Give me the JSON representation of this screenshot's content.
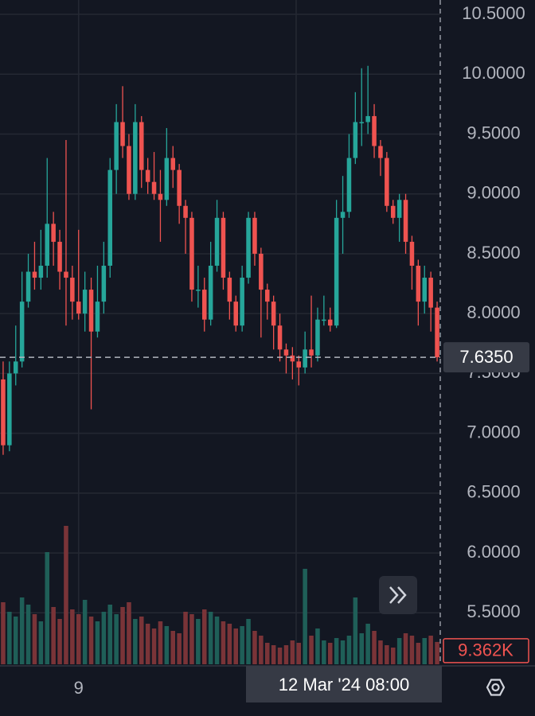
{
  "chart_data": {
    "type": "candlestick",
    "categories": [
      null,
      null,
      null,
      null,
      null,
      null,
      null,
      null,
      null,
      null,
      null,
      null,
      "9",
      null,
      null,
      null,
      null,
      null,
      null,
      null,
      null,
      null,
      null,
      null,
      null,
      null,
      null,
      null,
      null,
      null,
      null,
      null,
      null,
      null,
      null,
      null,
      null,
      null,
      null,
      null,
      null,
      null,
      null,
      null,
      null,
      null,
      null,
      null,
      null,
      null,
      null,
      null,
      null,
      null,
      null,
      null,
      null,
      null,
      null,
      null,
      null,
      null,
      null,
      null,
      null,
      null,
      null,
      null,
      null,
      null
    ],
    "open": [
      7.45,
      6.9,
      7.5,
      7.6,
      8.1,
      8.35,
      8.3,
      8.4,
      8.75,
      8.6,
      8.35,
      8.3,
      8.1,
      8.0,
      8.2,
      7.85,
      8.1,
      8.4,
      9.2,
      9.6,
      9.4,
      9.0,
      9.6,
      9.2,
      9.1,
      9.0,
      8.95,
      9.3,
      9.2,
      8.9,
      8.8,
      8.2,
      8.2,
      7.95,
      8.4,
      8.8,
      8.3,
      8.1,
      7.9,
      8.3,
      8.8,
      8.5,
      8.2,
      8.1,
      7.9,
      7.7,
      7.65,
      7.6,
      7.55,
      7.7,
      7.65,
      7.95,
      7.95,
      7.9,
      8.8,
      8.85,
      9.3,
      9.6,
      9.6,
      9.65,
      9.4,
      9.3,
      8.9,
      8.8,
      8.95,
      8.6,
      8.4,
      8.1,
      8.3,
      8.05
    ],
    "high": [
      7.6,
      7.6,
      7.9,
      8.35,
      8.5,
      8.6,
      8.7,
      9.3,
      8.85,
      8.7,
      9.45,
      8.4,
      8.7,
      8.35,
      8.3,
      8.4,
      8.6,
      9.3,
      9.75,
      9.9,
      9.5,
      9.75,
      9.65,
      9.3,
      9.35,
      9.2,
      9.55,
      9.4,
      9.25,
      8.95,
      8.85,
      8.4,
      8.3,
      8.6,
      8.95,
      8.85,
      8.35,
      8.15,
      8.4,
      8.85,
      8.85,
      8.55,
      8.25,
      8.15,
      8.0,
      7.75,
      7.72,
      7.65,
      7.85,
      8.15,
      8.05,
      8.15,
      8.05,
      8.95,
      9.15,
      9.5,
      9.85,
      10.05,
      10.07,
      9.75,
      9.45,
      9.35,
      8.95,
      9.0,
      9.0,
      8.65,
      8.45,
      8.4,
      8.35,
      8.1
    ],
    "low": [
      6.82,
      6.85,
      7.4,
      7.55,
      8.05,
      8.2,
      8.2,
      8.3,
      8.4,
      8.2,
      7.9,
      7.95,
      7.95,
      7.85,
      7.2,
      7.8,
      8.0,
      8.3,
      9.0,
      9.3,
      8.95,
      8.95,
      9.05,
      9.0,
      8.95,
      8.6,
      8.9,
      9.05,
      8.75,
      8.5,
      8.1,
      8.05,
      7.85,
      7.9,
      8.35,
      8.2,
      7.95,
      7.85,
      7.85,
      8.25,
      8.4,
      7.8,
      7.95,
      7.7,
      7.6,
      7.5,
      7.45,
      7.4,
      7.5,
      7.55,
      7.6,
      7.9,
      7.85,
      7.88,
      8.5,
      8.8,
      9.25,
      9.4,
      9.5,
      9.3,
      9.15,
      8.85,
      8.75,
      8.6,
      8.5,
      8.2,
      7.9,
      8.0,
      7.85,
      7.6
    ],
    "close": [
      6.9,
      7.5,
      7.6,
      8.1,
      8.35,
      8.3,
      8.4,
      8.75,
      8.6,
      8.35,
      8.3,
      8.1,
      8.0,
      8.2,
      7.85,
      8.1,
      8.4,
      9.2,
      9.6,
      9.4,
      9.0,
      9.6,
      9.2,
      9.1,
      9.0,
      8.95,
      9.3,
      9.2,
      8.9,
      8.8,
      8.2,
      8.2,
      7.95,
      8.4,
      8.8,
      8.3,
      8.1,
      7.9,
      8.3,
      8.8,
      8.5,
      8.2,
      8.1,
      7.9,
      7.7,
      7.65,
      7.6,
      7.55,
      7.7,
      7.65,
      7.95,
      7.95,
      7.9,
      8.8,
      8.85,
      9.3,
      9.6,
      9.6,
      9.65,
      9.4,
      9.3,
      8.9,
      8.8,
      8.95,
      8.6,
      8.4,
      8.1,
      8.3,
      8.05,
      7.635
    ],
    "volume": [
      26000,
      22000,
      20000,
      28000,
      25000,
      21000,
      18000,
      47000,
      24000,
      19000,
      58000,
      23000,
      21000,
      27000,
      20000,
      18000,
      22000,
      25000,
      21000,
      24000,
      26000,
      19000,
      20000,
      17000,
      15000,
      18000,
      16000,
      14000,
      13000,
      22000,
      21000,
      19000,
      23000,
      22000,
      20000,
      18000,
      17000,
      15000,
      16000,
      19000,
      14000,
      12000,
      9000,
      8000,
      7000,
      8000,
      10000,
      9000,
      40000,
      12000,
      15000,
      10000,
      9000,
      11000,
      10000,
      12000,
      28000,
      13000,
      17000,
      14000,
      10000,
      8000,
      7000,
      11000,
      13000,
      12000,
      9000,
      11000,
      12000,
      9362
    ],
    "up_color": "#26a69a",
    "down_color": "#ef5350",
    "up_volume_color": "#1f5f58",
    "down_volume_color": "#7a3438",
    "ylim": [
      5.07,
      10.62
    ],
    "yticks": [
      {
        "value": 10.5,
        "label": "10.5000"
      },
      {
        "value": 10,
        "label": "10.0000"
      },
      {
        "value": 9.5,
        "label": "9.5000"
      },
      {
        "value": 9,
        "label": "9.0000"
      },
      {
        "value": 8.5,
        "label": "8.5000"
      },
      {
        "value": 8,
        "label": "8.0000"
      },
      {
        "value": 7.5,
        "label": "7.5000"
      },
      {
        "value": 7,
        "label": "7.0000"
      },
      {
        "value": 6.5,
        "label": "6.5000"
      },
      {
        "value": 6,
        "label": "6.0000"
      },
      {
        "value": 5.5,
        "label": "5.5000"
      }
    ],
    "volume_lim": [
      0,
      60000
    ],
    "grid": true,
    "last_price": {
      "value": 7.635,
      "label": "7.6350"
    },
    "last_volume": {
      "value": 9362,
      "label": "9.362K"
    },
    "crosshair_label": "12 Mar '24   08:00"
  }
}
